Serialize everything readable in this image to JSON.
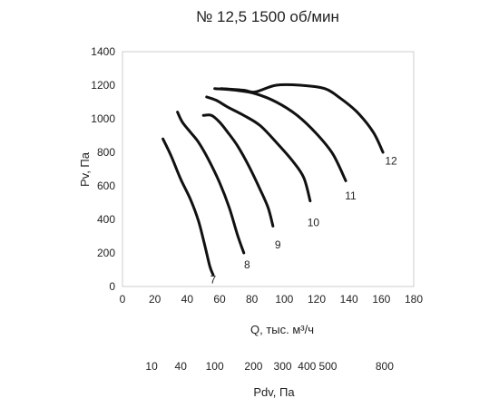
{
  "chart_data": {
    "type": "line",
    "title": "№ 12,5 1500 об/мин",
    "xlabel": "Q, тыс. м³/ч",
    "ylabel": "Pv, Па",
    "xlim": [
      0,
      180
    ],
    "ylim": [
      0,
      1400
    ],
    "x_ticks": [
      0,
      20,
      40,
      60,
      80,
      100,
      120,
      140,
      160,
      180
    ],
    "y_ticks": [
      0,
      200,
      400,
      600,
      800,
      1000,
      1200,
      1400
    ],
    "grid": false,
    "series": [
      {
        "name": "7",
        "x": [
          25,
          30,
          36,
          42,
          47,
          51,
          54,
          56
        ],
        "y": [
          880,
          780,
          640,
          520,
          390,
          240,
          120,
          70
        ]
      },
      {
        "name": "8",
        "x": [
          34,
          37,
          42,
          47,
          53,
          60,
          66,
          71,
          75
        ],
        "y": [
          1040,
          980,
          920,
          860,
          760,
          620,
          470,
          310,
          200
        ]
      },
      {
        "name": "9",
        "x": [
          50,
          55,
          60,
          65,
          71,
          78,
          85,
          90,
          93
        ],
        "y": [
          1020,
          1020,
          980,
          920,
          840,
          720,
          580,
          470,
          360
        ]
      },
      {
        "name": "10",
        "x": [
          52,
          58,
          65,
          75,
          85,
          95,
          105,
          112,
          116
        ],
        "y": [
          1130,
          1110,
          1070,
          1020,
          960,
          860,
          750,
          650,
          510
        ]
      },
      {
        "name": "11",
        "x": [
          57,
          70,
          82,
          95,
          108,
          120,
          130,
          138
        ],
        "y": [
          1180,
          1170,
          1150,
          1100,
          1020,
          910,
          790,
          630
        ]
      },
      {
        "name": "12",
        "x": [
          61,
          75,
          82,
          95,
          110,
          125,
          135,
          145,
          155,
          161
        ],
        "y": [
          1180,
          1170,
          1160,
          1200,
          1200,
          1180,
          1120,
          1040,
          920,
          800
        ]
      }
    ],
    "labels": [
      {
        "text": "7",
        "x": 56,
        "y": 40
      },
      {
        "text": "8",
        "x": 77,
        "y": 130
      },
      {
        "text": "9",
        "x": 96,
        "y": 250
      },
      {
        "text": "10",
        "x": 118,
        "y": 380
      },
      {
        "text": "11",
        "x": 141,
        "y": 540
      },
      {
        "text": "12",
        "x": 166,
        "y": 750
      }
    ],
    "secondary_axis": {
      "label": "Pdv, Па",
      "ticks": [
        {
          "text": "10",
          "q": 18
        },
        {
          "text": "40",
          "q": 36
        },
        {
          "text": "100",
          "q": 57
        },
        {
          "text": "200",
          "q": 81
        },
        {
          "text": "300",
          "q": 99
        },
        {
          "text": "400",
          "q": 114
        },
        {
          "text": "500",
          "q": 127
        },
        {
          "text": "800",
          "q": 162
        }
      ]
    }
  }
}
